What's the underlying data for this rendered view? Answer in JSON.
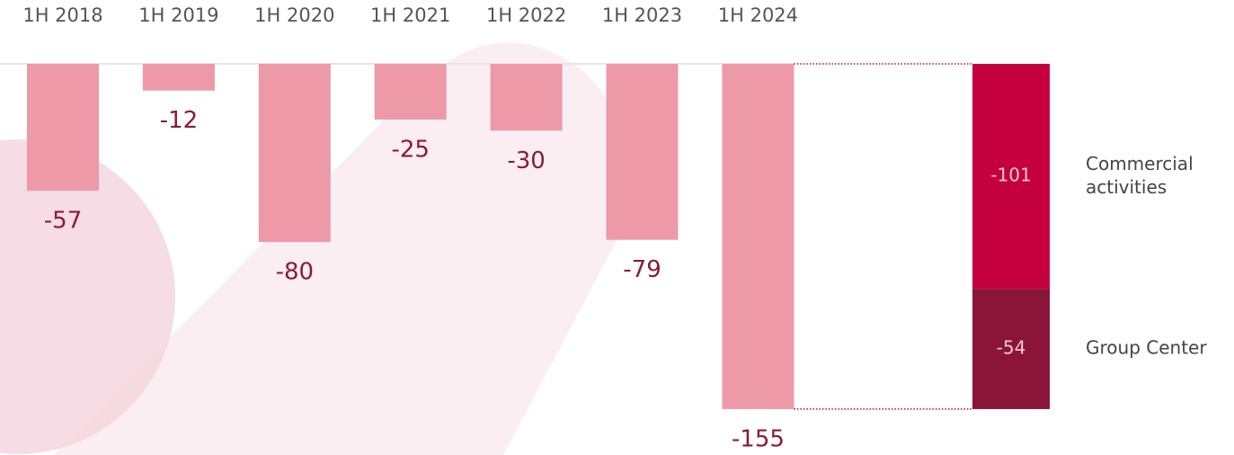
{
  "chart_data": {
    "type": "bar",
    "categories": [
      "1H 2018",
      "1H 2019",
      "1H 2020",
      "1H 2021",
      "1H 2022",
      "1H 2023",
      "1H 2024"
    ],
    "values": [
      -57,
      -12,
      -80,
      -25,
      -30,
      -79,
      -155
    ],
    "color": "#ee99a8",
    "label_color": "#8b1a3a",
    "breakdown": {
      "type": "stacked_bar",
      "series": [
        {
          "name": "Commercial activities",
          "color": "#c4003f",
          "value": -101
        },
        {
          "name": "Group Center",
          "color": "#8b1538",
          "value": -54
        }
      ]
    }
  }
}
